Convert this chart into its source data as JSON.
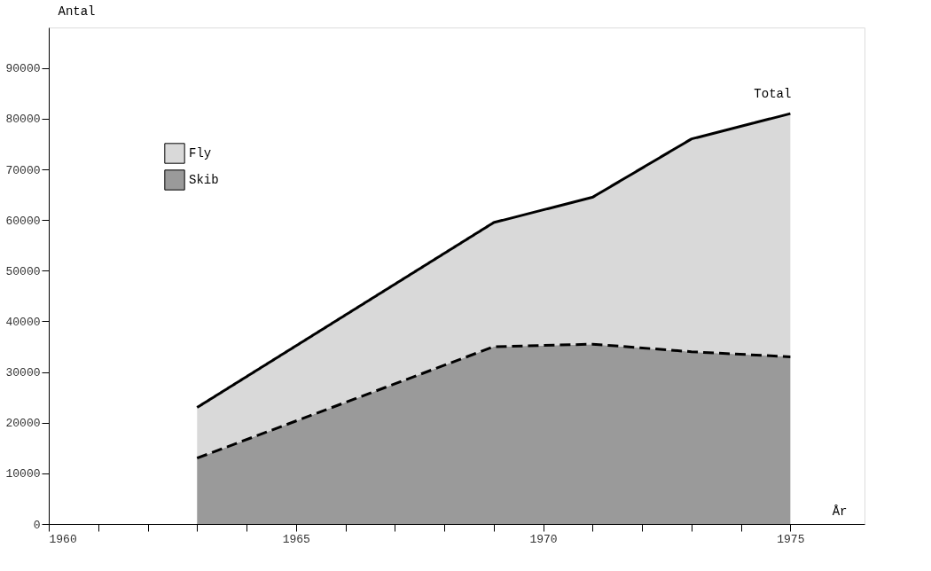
{
  "chart_data": {
    "type": "area",
    "stacked": true,
    "xlabel": "År",
    "ylabel": "Antal",
    "x": [
      1963,
      1969,
      1971,
      1973,
      1975
    ],
    "series": [
      {
        "name": "Skib",
        "color": "#9a9a9a",
        "line_style": "dashed",
        "values": [
          13000,
          35000,
          35500,
          34000,
          33000
        ]
      },
      {
        "name": "Fly",
        "color": "#d9d9d9",
        "line_style": "solid",
        "values": [
          10000,
          24500,
          29000,
          42000,
          48000
        ]
      }
    ],
    "xlim": [
      1960,
      1976.5
    ],
    "xticks": [
      1960,
      {
        "value": 1961,
        "label": null
      },
      {
        "value": 1962,
        "label": null
      },
      {
        "value": 1963,
        "label": null
      },
      {
        "value": 1964,
        "label": null
      },
      1965,
      {
        "value": 1966,
        "label": null
      },
      {
        "value": 1967,
        "label": null
      },
      {
        "value": 1968,
        "label": null
      },
      {
        "value": 1969,
        "label": null
      },
      1970,
      {
        "value": 1971,
        "label": null
      },
      {
        "value": 1972,
        "label": null
      },
      {
        "value": 1973,
        "label": null
      },
      {
        "value": 1974,
        "label": null
      },
      1975
    ],
    "ylim": [
      0,
      98000
    ],
    "yticks": [
      0,
      10000,
      20000,
      30000,
      40000,
      50000,
      60000,
      70000,
      80000,
      90000
    ],
    "annotations": [
      {
        "text": "Total",
        "x": 1975,
        "y": 81000
      }
    ],
    "legend": "top left",
    "grid": false
  }
}
